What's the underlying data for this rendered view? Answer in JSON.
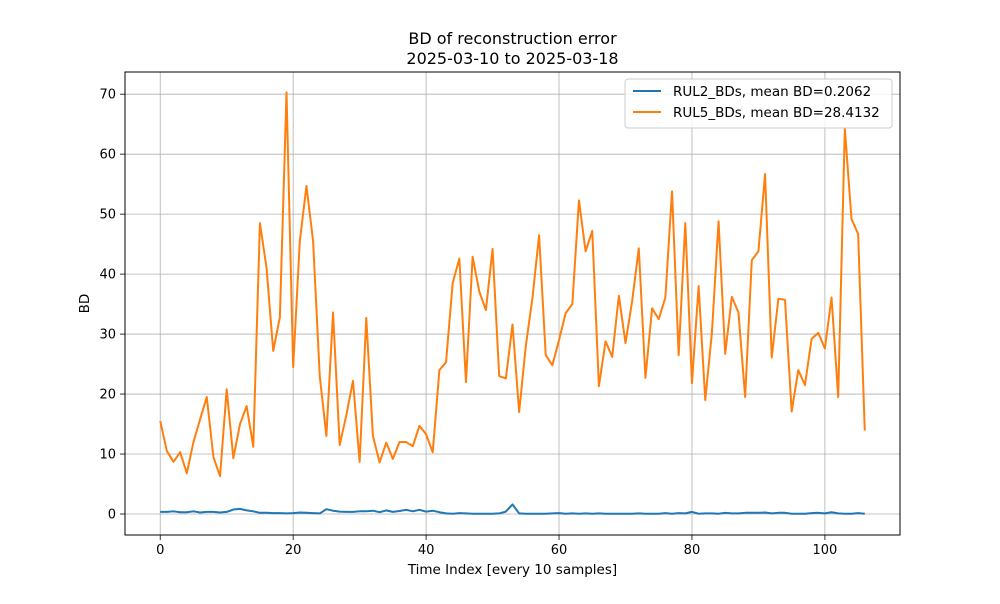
{
  "chart_data": {
    "type": "line",
    "title": "BD of reconstruction error",
    "subtitle": "2025-03-10 to 2025-03-18",
    "xlabel": "Time Index [every 10 samples]",
    "ylabel": "BD",
    "xlim": [
      -5.3,
      111.3
    ],
    "ylim": [
      -3.5,
      73.7
    ],
    "xticks": [
      0,
      20,
      40,
      60,
      80,
      100
    ],
    "yticks": [
      0,
      10,
      20,
      30,
      40,
      50,
      60,
      70
    ],
    "grid": true,
    "legend_position": "top-right",
    "series": [
      {
        "name": "RUL2_BDs, mean BD=0.2062",
        "color": "#1f77b4",
        "x": [
          0,
          1,
          2,
          3,
          4,
          5,
          6,
          7,
          8,
          9,
          10,
          11,
          12,
          13,
          14,
          15,
          16,
          17,
          18,
          19,
          20,
          21,
          22,
          23,
          24,
          25,
          26,
          27,
          28,
          29,
          30,
          31,
          32,
          33,
          34,
          35,
          36,
          37,
          38,
          39,
          40,
          41,
          42,
          43,
          44,
          45,
          46,
          47,
          48,
          49,
          50,
          51,
          52,
          53,
          54,
          55,
          56,
          57,
          58,
          59,
          60,
          61,
          62,
          63,
          64,
          65,
          66,
          67,
          68,
          69,
          70,
          71,
          72,
          73,
          74,
          75,
          76,
          77,
          78,
          79,
          80,
          81,
          82,
          83,
          84,
          85,
          86,
          87,
          88,
          89,
          90,
          91,
          92,
          93,
          94,
          95,
          96,
          97,
          98,
          99,
          100,
          101,
          102,
          103,
          104,
          105,
          106
        ],
        "values": [
          0.35,
          0.35,
          0.45,
          0.3,
          0.3,
          0.45,
          0.25,
          0.35,
          0.35,
          0.25,
          0.35,
          0.75,
          0.85,
          0.6,
          0.45,
          0.2,
          0.2,
          0.15,
          0.15,
          0.1,
          0.15,
          0.25,
          0.2,
          0.15,
          0.1,
          0.8,
          0.55,
          0.4,
          0.35,
          0.35,
          0.45,
          0.45,
          0.55,
          0.3,
          0.6,
          0.35,
          0.5,
          0.7,
          0.45,
          0.7,
          0.4,
          0.55,
          0.3,
          0.1,
          0.05,
          0.15,
          0.1,
          0.05,
          0.05,
          0.05,
          0.05,
          0.1,
          0.4,
          1.6,
          0.1,
          0.05,
          0.05,
          0.05,
          0.05,
          0.1,
          0.15,
          0.05,
          0.1,
          0.05,
          0.1,
          0.05,
          0.1,
          0.05,
          0.05,
          0.05,
          0.05,
          0.05,
          0.1,
          0.05,
          0.05,
          0.05,
          0.15,
          0.05,
          0.15,
          0.1,
          0.35,
          0.05,
          0.1,
          0.1,
          0.05,
          0.2,
          0.1,
          0.1,
          0.2,
          0.2,
          0.2,
          0.25,
          0.1,
          0.2,
          0.2,
          0.05,
          0.05,
          0.05,
          0.15,
          0.2,
          0.1,
          0.3,
          0.1,
          0.05,
          0.05,
          0.15,
          0.05
        ]
      },
      {
        "name": "RUL5_BDs, mean BD=28.4132",
        "color": "#ff7f0e",
        "x": [
          0,
          1,
          2,
          3,
          4,
          5,
          6,
          7,
          8,
          9,
          10,
          11,
          12,
          13,
          14,
          15,
          16,
          17,
          18,
          19,
          20,
          21,
          22,
          23,
          24,
          25,
          26,
          27,
          28,
          29,
          30,
          31,
          32,
          33,
          34,
          35,
          36,
          37,
          38,
          39,
          40,
          41,
          42,
          43,
          44,
          45,
          46,
          47,
          48,
          49,
          50,
          51,
          52,
          53,
          54,
          55,
          56,
          57,
          58,
          59,
          60,
          61,
          62,
          63,
          64,
          65,
          66,
          67,
          68,
          69,
          70,
          71,
          72,
          73,
          74,
          75,
          76,
          77,
          78,
          79,
          80,
          81,
          82,
          83,
          84,
          85,
          86,
          87,
          88,
          89,
          90,
          91,
          92,
          93,
          94,
          95,
          96,
          97,
          98,
          99,
          100,
          101,
          102,
          103,
          104,
          105,
          106
        ],
        "values": [
          15.5,
          10.5,
          8.7,
          10.3,
          6.8,
          12.0,
          15.8,
          19.5,
          9.5,
          6.3,
          20.8,
          9.3,
          15.0,
          18.0,
          11.2,
          48.5,
          41.0,
          27.2,
          32.8,
          70.3,
          24.5,
          45.5,
          54.7,
          45.5,
          23.0,
          13.0,
          33.6,
          11.5,
          16.5,
          22.2,
          8.7,
          32.7,
          13.0,
          8.6,
          11.9,
          9.2,
          12.0,
          12.0,
          11.3,
          14.7,
          13.3,
          10.3,
          24.0,
          25.3,
          38.5,
          42.6,
          22.0,
          42.9,
          37.1,
          34.0,
          44.2,
          23.0,
          22.6,
          31.6,
          17.0,
          28.0,
          36.0,
          46.5,
          26.5,
          24.8,
          29.0,
          33.5,
          35.0,
          52.3,
          43.8,
          47.2,
          21.3,
          28.8,
          26.2,
          36.4,
          28.5,
          35.5,
          44.3,
          22.7,
          34.3,
          32.5,
          36.1,
          53.8,
          26.5,
          48.5,
          21.8,
          38.0,
          19.0,
          30.2,
          48.8,
          26.7,
          36.2,
          33.6,
          19.5,
          42.3,
          43.8,
          56.7,
          26.1,
          35.9,
          35.7,
          17.1,
          24.0,
          21.5,
          29.2,
          30.2,
          27.6,
          36.1,
          19.5,
          64.3,
          49.2,
          46.7,
          13.9
        ]
      }
    ]
  }
}
